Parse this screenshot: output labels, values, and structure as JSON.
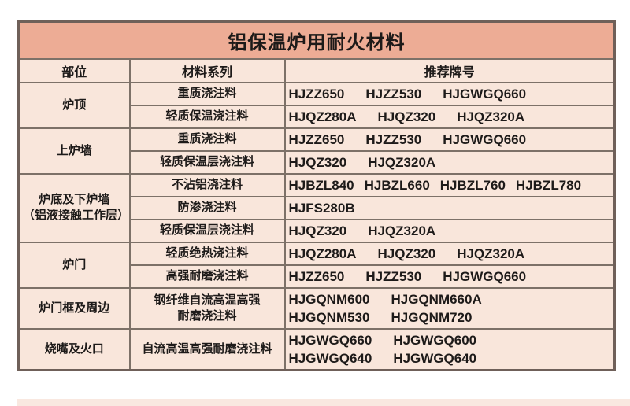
{
  "title": "铝保温炉用耐火材料",
  "colors": {
    "page_bg": "#ffffff",
    "title_bg": "#edac95",
    "cell_bg": "#f9e6db",
    "border": "#7d7168",
    "outer_border": "#6f6059",
    "text": "#1d1a19",
    "strip": "#f9e8e0"
  },
  "table": {
    "headers": [
      "部位",
      "材料系列",
      "推荐牌号"
    ],
    "groups": [
      {
        "part_lines": [
          "炉顶"
        ],
        "rows": [
          {
            "series_lines": [
              "重质浇注料"
            ],
            "grade_lines": [
              [
                "HJZZ650",
                "HJZZ530",
                "HJGWGQ660"
              ]
            ]
          },
          {
            "series_lines": [
              "轻质保温浇注料"
            ],
            "grade_lines": [
              [
                "HJQZ280A",
                "HJQZ320",
                "HJQZ320A"
              ]
            ]
          }
        ]
      },
      {
        "part_lines": [
          "上炉墙"
        ],
        "rows": [
          {
            "series_lines": [
              "重质浇注料"
            ],
            "grade_lines": [
              [
                "HJZZ650",
                "HJZZ530",
                "HJGWGQ660"
              ]
            ]
          },
          {
            "series_lines": [
              "轻质保温层浇注料"
            ],
            "grade_lines": [
              [
                "HJQZ320",
                "HJQZ320A"
              ]
            ]
          }
        ]
      },
      {
        "part_lines": [
          "炉底及下炉墙",
          "（铝液接触工作层）"
        ],
        "rows": [
          {
            "series_lines": [
              "不沾铝浇注料"
            ],
            "grade_lines": [
              [
                "HJBZL840",
                "HJBZL660",
                "HJBZL760",
                "HJBZL780"
              ]
            ]
          },
          {
            "series_lines": [
              "防渗浇注料"
            ],
            "grade_lines": [
              [
                "HJFS280B"
              ]
            ]
          },
          {
            "series_lines": [
              "轻质保温层浇注料"
            ],
            "grade_lines": [
              [
                "HJQZ320",
                "HJQZ320A"
              ]
            ]
          }
        ]
      },
      {
        "part_lines": [
          "炉门"
        ],
        "rows": [
          {
            "series_lines": [
              "轻质绝热浇注料"
            ],
            "grade_lines": [
              [
                "HJQZ280A",
                "HJQZ320",
                "HJQZ320A"
              ]
            ]
          },
          {
            "series_lines": [
              "高强耐磨浇注料"
            ],
            "grade_lines": [
              [
                "HJZZ650",
                "HJZZ530",
                "HJGWGQ660"
              ]
            ]
          }
        ]
      },
      {
        "part_lines": [
          "炉门框及周边"
        ],
        "rows": [
          {
            "series_lines": [
              "钢纤维自流高温高强",
              "耐磨浇注料"
            ],
            "grade_lines": [
              [
                "HJGQNM600",
                "HJGQNM660A"
              ],
              [
                "HJGQNM530",
                "HJGQNM720"
              ]
            ]
          }
        ]
      },
      {
        "part_lines": [
          "烧嘴及火口"
        ],
        "rows": [
          {
            "series_lines": [
              "自流高温高强耐磨浇注料"
            ],
            "grade_lines": [
              [
                "HJGWGQ660",
                "HJGWGQ600"
              ],
              [
                "HJGWGQ640",
                "HJGWGQ640"
              ]
            ]
          }
        ]
      }
    ]
  }
}
